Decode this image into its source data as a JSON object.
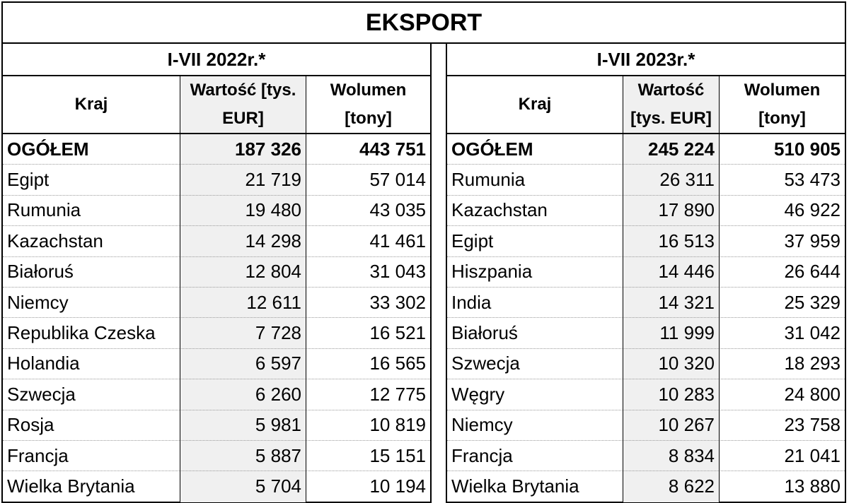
{
  "title": "EKSPORT",
  "left": {
    "period": "I-VII 2022r.*",
    "headers": {
      "country": "Kraj",
      "value_line1": "Wartość [tys.",
      "value_line2": "EUR]",
      "volume_line1": "Wolumen",
      "volume_line2": "[tony]"
    },
    "total": {
      "label": "OGÓŁEM",
      "value": "187 326",
      "volume": "443 751"
    },
    "rows": [
      {
        "country": "Egipt",
        "value": "21 719",
        "volume": "57 014"
      },
      {
        "country": "Rumunia",
        "value": "19 480",
        "volume": "43 035"
      },
      {
        "country": "Kazachstan",
        "value": "14 298",
        "volume": "41 461"
      },
      {
        "country": "Białoruś",
        "value": "12 804",
        "volume": "31 043"
      },
      {
        "country": "Niemcy",
        "value": "12 611",
        "volume": "33 302"
      },
      {
        "country": "Republika Czeska",
        "value": "7 728",
        "volume": "16 521"
      },
      {
        "country": "Holandia",
        "value": "6 597",
        "volume": "16 565"
      },
      {
        "country": "Szwecja",
        "value": "6 260",
        "volume": "12 775"
      },
      {
        "country": "Rosja",
        "value": "5 981",
        "volume": "10 819"
      },
      {
        "country": "Francja",
        "value": "5 887",
        "volume": "15 151"
      },
      {
        "country": "Wielka Brytania",
        "value": "5 704",
        "volume": "10 194"
      }
    ]
  },
  "right": {
    "period": "I-VII 2023r.*",
    "headers": {
      "country": "Kraj",
      "value_line1": "Wartość",
      "value_line2": "[tys. EUR]",
      "volume_line1": "Wolumen",
      "volume_line2": "[tony]"
    },
    "total": {
      "label": "OGÓŁEM",
      "value": "245 224",
      "volume": "510 905"
    },
    "rows": [
      {
        "country": "Rumunia",
        "value": "26 311",
        "volume": "53 473"
      },
      {
        "country": "Kazachstan",
        "value": "17 890",
        "volume": "46 922"
      },
      {
        "country": "Egipt",
        "value": "16 513",
        "volume": "37 959"
      },
      {
        "country": "Hiszpania",
        "value": "14 446",
        "volume": "26 644"
      },
      {
        "country": "India",
        "value": "14 321",
        "volume": "25 329"
      },
      {
        "country": "Białoruś",
        "value": "11 999",
        "volume": "31 042"
      },
      {
        "country": "Szwecja",
        "value": "10 320",
        "volume": "18 293"
      },
      {
        "country": "Węgry",
        "value": "10 283",
        "volume": "24 800"
      },
      {
        "country": "Niemcy",
        "value": "10 267",
        "volume": "23 758"
      },
      {
        "country": "Francja",
        "value": "8 834",
        "volume": "21 041"
      },
      {
        "country": "Wielka Brytania",
        "value": "8 622",
        "volume": "13 880"
      }
    ]
  }
}
